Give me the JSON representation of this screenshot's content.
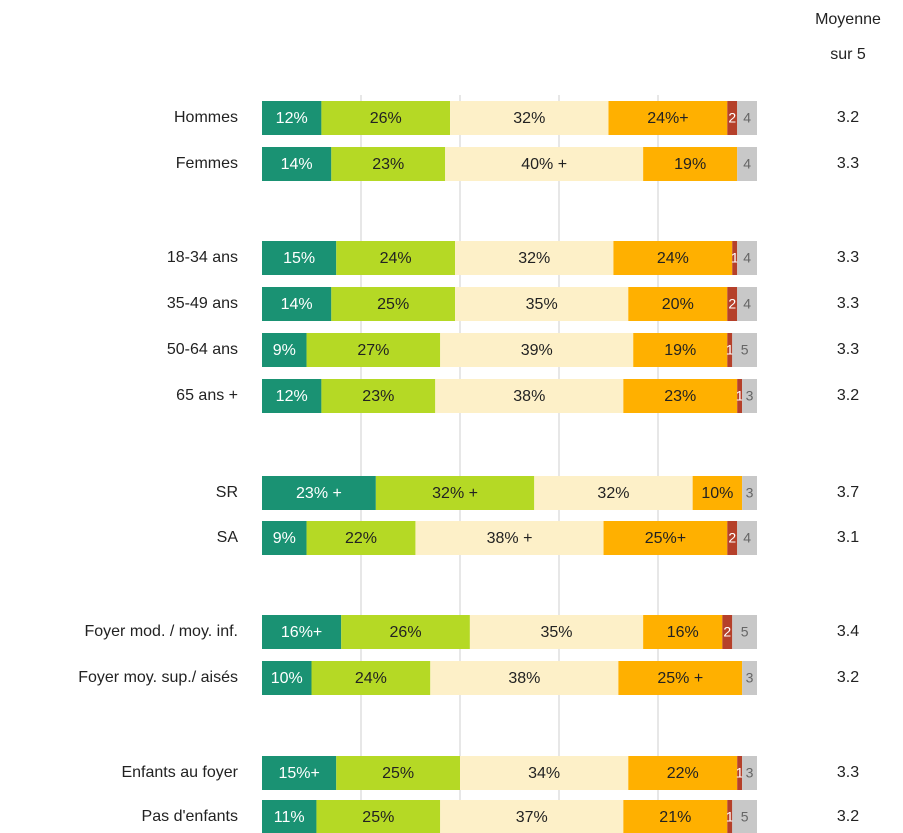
{
  "chart_data": {
    "type": "stacked-barh",
    "categories": [
      "Hommes",
      "Femmes",
      "18-34 ans",
      "35-49 ans",
      "50-64 ans",
      "65 ans +",
      "SR",
      "SA",
      "Foyer mod. / moy. inf.",
      "Foyer moy. sup./ aisés",
      "Enfants au foyer",
      "Pas d'enfants"
    ],
    "xlim": [
      0,
      100
    ],
    "xticks": [
      20,
      40,
      60,
      80
    ],
    "grid": true,
    "series": [
      {
        "color": "#1a9273",
        "label_color": "#ffffff",
        "values": [
          12,
          14,
          15,
          14,
          9,
          12,
          23,
          9,
          16,
          10,
          15,
          11
        ],
        "value_labels": [
          "12%",
          "14%",
          "15%",
          "14%",
          "9%",
          "12%",
          "23% +",
          "9%",
          "16%+",
          "10%",
          "15%+",
          "11%"
        ]
      },
      {
        "color": "#b5d925",
        "label_color": "#222222",
        "values": [
          26,
          23,
          24,
          25,
          27,
          23,
          32,
          22,
          26,
          24,
          25,
          25
        ],
        "value_labels": [
          "26%",
          "23%",
          "24%",
          "25%",
          "27%",
          "23%",
          "32% +",
          "22%",
          "26%",
          "24%",
          "25%",
          "25%"
        ]
      },
      {
        "color": "#fdf0c8",
        "label_color": "#222222",
        "values": [
          32,
          40,
          32,
          35,
          39,
          38,
          32,
          38,
          35,
          38,
          34,
          37
        ],
        "value_labels": [
          "32%",
          "40% +",
          "32%",
          "35%",
          "39%",
          "38%",
          "32%",
          "38% +",
          "35%",
          "38%",
          "34%",
          "37%"
        ]
      },
      {
        "color": "#ffb000",
        "label_color": "#222222",
        "values": [
          24,
          19,
          24,
          20,
          19,
          23,
          10,
          25,
          16,
          25,
          22,
          21
        ],
        "value_labels": [
          "24%+",
          "19%",
          "24%",
          "20%",
          "19%",
          "23%",
          "10%",
          "25%+",
          "16%",
          "25% +",
          "22%",
          "21%"
        ]
      },
      {
        "color": "#b5402a",
        "label_color": "#ffffff",
        "values": [
          2,
          null,
          1,
          2,
          1,
          1,
          null,
          2,
          2,
          null,
          1,
          1
        ]
      },
      {
        "color": "#c8c8c8",
        "label_color": "#666666",
        "values": [
          4,
          4,
          4,
          4,
          5,
          3,
          3,
          4,
          5,
          3,
          3,
          5
        ]
      }
    ],
    "mean_title": [
      "Moyenne",
      "sur 5"
    ],
    "means": [
      3.2,
      3.3,
      3.3,
      3.3,
      3.3,
      3.2,
      3.7,
      3.1,
      3.4,
      3.2,
      3.3,
      3.2
    ]
  }
}
